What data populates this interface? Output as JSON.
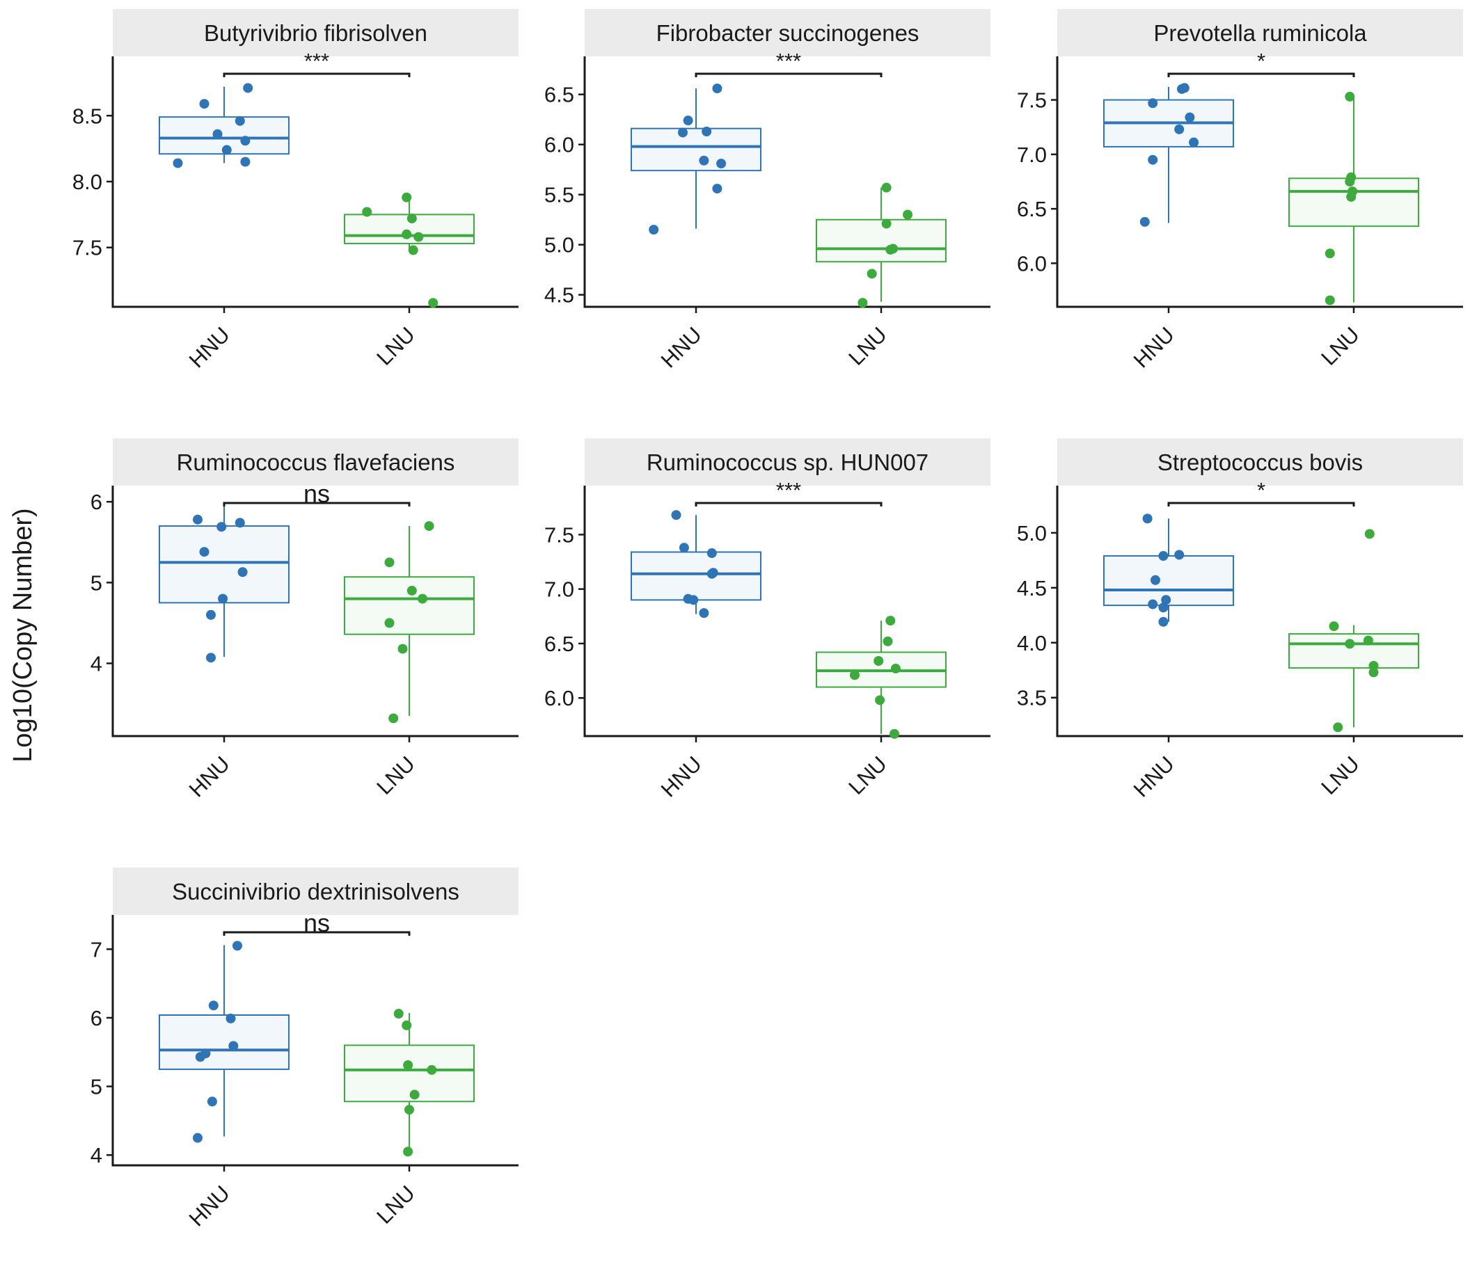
{
  "figure": {
    "ylabel": "Log10(Copy Number)",
    "colors": {
      "HNU": "#2F74B5",
      "LNU": "#3DAA3D",
      "strip_bg": "#EBEBEB",
      "axis": "#1a1a1a"
    }
  },
  "chart_data": [
    {
      "type": "boxplot",
      "title": "Butyrivibrio fibrisolven",
      "categories": [
        "HNU",
        "LNU"
      ],
      "ylim": [
        7.05,
        8.95
      ],
      "yticks": [
        7.5,
        8.0,
        8.5
      ],
      "ytick_labels": [
        "7.5",
        "8.0",
        "8.5"
      ],
      "significance": "***",
      "boxes": [
        {
          "group": "HNU",
          "q1": 8.21,
          "median": 8.33,
          "q3": 8.49,
          "whisker_low": 8.14,
          "whisker_high": 8.72
        },
        {
          "group": "LNU",
          "q1": 7.53,
          "median": 7.59,
          "q3": 7.75,
          "whisker_low": 7.47,
          "whisker_high": 7.88
        }
      ],
      "points": {
        "HNU": [
          [
            -0.35,
            8.14
          ],
          [
            -0.15,
            8.59
          ],
          [
            -0.05,
            8.36
          ],
          [
            0.02,
            8.24
          ],
          [
            0.12,
            8.46
          ],
          [
            0.16,
            8.31
          ],
          [
            0.16,
            8.15
          ],
          [
            0.18,
            8.71
          ]
        ],
        "LNU": [
          [
            -0.32,
            7.77
          ],
          [
            -0.02,
            7.88
          ],
          [
            0.02,
            7.72
          ],
          [
            -0.02,
            7.6
          ],
          [
            0.07,
            7.58
          ],
          [
            0.03,
            7.48
          ],
          [
            0.18,
            7.08
          ]
        ]
      }
    },
    {
      "type": "boxplot",
      "title": "Fibrobacter succinogenes",
      "categories": [
        "HNU",
        "LNU"
      ],
      "ylim": [
        4.38,
        6.88
      ],
      "yticks": [
        4.5,
        5.0,
        5.5,
        6.0,
        6.5
      ],
      "ytick_labels": [
        "4.5",
        "5.0",
        "5.5",
        "6.0",
        "6.5"
      ],
      "significance": "***",
      "boxes": [
        {
          "group": "HNU",
          "q1": 5.74,
          "median": 5.98,
          "q3": 6.16,
          "whisker_low": 5.16,
          "whisker_high": 6.56
        },
        {
          "group": "LNU",
          "q1": 4.83,
          "median": 4.96,
          "q3": 5.25,
          "whisker_low": 4.43,
          "whisker_high": 5.57
        }
      ],
      "points": {
        "HNU": [
          [
            -0.32,
            5.15
          ],
          [
            -0.1,
            6.12
          ],
          [
            -0.06,
            6.24
          ],
          [
            0.06,
            5.84
          ],
          [
            0.08,
            6.13
          ],
          [
            0.16,
            5.56
          ],
          [
            0.19,
            5.81
          ],
          [
            0.16,
            6.56
          ]
        ],
        "LNU": [
          [
            -0.14,
            4.42
          ],
          [
            -0.07,
            4.71
          ],
          [
            0.04,
            5.57
          ],
          [
            0.04,
            5.21
          ],
          [
            0.07,
            4.95
          ],
          [
            0.09,
            4.96
          ],
          [
            0.2,
            5.3
          ]
        ]
      }
    },
    {
      "type": "boxplot",
      "title": "Prevotella ruminicola",
      "categories": [
        "HNU",
        "LNU"
      ],
      "ylim": [
        5.6,
        7.9
      ],
      "yticks": [
        6.0,
        6.5,
        7.0,
        7.5
      ],
      "ytick_labels": [
        "6.0",
        "6.5",
        "7.0",
        "7.5"
      ],
      "significance": "*",
      "boxes": [
        {
          "group": "HNU",
          "q1": 7.07,
          "median": 7.29,
          "q3": 7.5,
          "whisker_low": 6.37,
          "whisker_high": 7.62
        },
        {
          "group": "LNU",
          "q1": 6.34,
          "median": 6.66,
          "q3": 6.78,
          "whisker_low": 5.64,
          "whisker_high": 7.53
        }
      ],
      "points": {
        "HNU": [
          [
            -0.18,
            6.38
          ],
          [
            -0.12,
            6.95
          ],
          [
            -0.12,
            7.47
          ],
          [
            0.08,
            7.23
          ],
          [
            0.1,
            7.6
          ],
          [
            0.12,
            7.61
          ],
          [
            0.16,
            7.34
          ],
          [
            0.19,
            7.11
          ]
        ],
        "LNU": [
          [
            -0.18,
            5.66
          ],
          [
            -0.18,
            6.09
          ],
          [
            -0.02,
            6.79
          ],
          [
            -0.01,
            6.66
          ],
          [
            -0.02,
            6.61
          ],
          [
            -0.03,
            6.75
          ],
          [
            -0.03,
            7.53
          ]
        ]
      }
    },
    {
      "type": "boxplot",
      "title": "Ruminococcus flavefaciens",
      "categories": [
        "HNU",
        "LNU"
      ],
      "ylim": [
        3.1,
        6.2
      ],
      "yticks": [
        4,
        5,
        6
      ],
      "ytick_labels": [
        "4",
        "5",
        "6"
      ],
      "significance": "ns",
      "boxes": [
        {
          "group": "HNU",
          "q1": 4.75,
          "median": 5.25,
          "q3": 5.7,
          "whisker_low": 4.08,
          "whisker_high": 5.95
        },
        {
          "group": "LNU",
          "q1": 4.36,
          "median": 4.8,
          "q3": 5.07,
          "whisker_low": 3.35,
          "whisker_high": 5.7
        }
      ],
      "points": {
        "HNU": [
          [
            -0.2,
            5.78
          ],
          [
            -0.15,
            5.38
          ],
          [
            -0.1,
            4.6
          ],
          [
            -0.1,
            4.07
          ],
          [
            -0.01,
            4.8
          ],
          [
            -0.02,
            5.69
          ],
          [
            0.12,
            5.74
          ],
          [
            0.14,
            5.13
          ]
        ],
        "LNU": [
          [
            -0.15,
            5.25
          ],
          [
            -0.15,
            4.5
          ],
          [
            -0.05,
            4.18
          ],
          [
            -0.12,
            3.32
          ],
          [
            0.02,
            4.9
          ],
          [
            0.1,
            4.8
          ],
          [
            0.15,
            5.7
          ]
        ]
      }
    },
    {
      "type": "boxplot",
      "title": "Ruminococcus sp. HUN007",
      "categories": [
        "HNU",
        "LNU"
      ],
      "ylim": [
        5.65,
        7.95
      ],
      "yticks": [
        6.0,
        6.5,
        7.0,
        7.5
      ],
      "ytick_labels": [
        "6.0",
        "6.5",
        "7.0",
        "7.5"
      ],
      "significance": "***",
      "boxes": [
        {
          "group": "HNU",
          "q1": 6.9,
          "median": 7.14,
          "q3": 7.34,
          "whisker_low": 6.77,
          "whisker_high": 7.68
        },
        {
          "group": "LNU",
          "q1": 6.1,
          "median": 6.25,
          "q3": 6.42,
          "whisker_low": 5.67,
          "whisker_high": 6.71
        }
      ],
      "points": {
        "HNU": [
          [
            -0.15,
            7.68
          ],
          [
            -0.09,
            7.38
          ],
          [
            -0.06,
            6.91
          ],
          [
            -0.02,
            6.9
          ],
          [
            0.06,
            6.78
          ],
          [
            0.12,
            7.33
          ],
          [
            0.12,
            7.14
          ],
          [
            0.13,
            7.15
          ]
        ],
        "LNU": [
          [
            -0.2,
            6.21
          ],
          [
            -0.01,
            5.98
          ],
          [
            -0.02,
            6.34
          ],
          [
            0.05,
            6.52
          ],
          [
            0.07,
            6.71
          ],
          [
            0.11,
            6.27
          ],
          [
            0.1,
            5.67
          ]
        ]
      }
    },
    {
      "type": "boxplot",
      "title": "Streptococcus bovis",
      "categories": [
        "HNU",
        "LNU"
      ],
      "ylim": [
        3.15,
        5.43
      ],
      "yticks": [
        3.5,
        4.0,
        4.5,
        5.0
      ],
      "ytick_labels": [
        "3.5",
        "4.0",
        "4.5",
        "5.0"
      ],
      "significance": "*",
      "boxes": [
        {
          "group": "HNU",
          "q1": 4.34,
          "median": 4.48,
          "q3": 4.79,
          "whisker_low": 4.19,
          "whisker_high": 5.13
        },
        {
          "group": "LNU",
          "q1": 3.77,
          "median": 3.99,
          "q3": 4.08,
          "whisker_low": 3.23,
          "whisker_high": 4.16
        }
      ],
      "points": {
        "HNU": [
          [
            -0.16,
            5.13
          ],
          [
            -0.1,
            4.57
          ],
          [
            -0.12,
            4.35
          ],
          [
            -0.04,
            4.19
          ],
          [
            -0.04,
            4.32
          ],
          [
            -0.04,
            4.79
          ],
          [
            -0.02,
            4.39
          ],
          [
            0.08,
            4.8
          ]
        ],
        "LNU": [
          [
            -0.15,
            4.15
          ],
          [
            -0.12,
            3.23
          ],
          [
            -0.03,
            3.99
          ],
          [
            0.11,
            4.02
          ],
          [
            0.15,
            3.79
          ],
          [
            0.15,
            3.73
          ],
          [
            0.12,
            4.99
          ]
        ]
      }
    },
    {
      "type": "boxplot",
      "title": "Succinivibrio dextrinisolvens",
      "categories": [
        "HNU",
        "LNU"
      ],
      "ylim": [
        3.85,
        7.5
      ],
      "yticks": [
        4,
        5,
        6,
        7
      ],
      "ytick_labels": [
        "4",
        "5",
        "6",
        "7"
      ],
      "significance": "ns",
      "boxes": [
        {
          "group": "HNU",
          "q1": 5.25,
          "median": 5.53,
          "q3": 6.04,
          "whisker_low": 4.27,
          "whisker_high": 7.06
        },
        {
          "group": "LNU",
          "q1": 4.78,
          "median": 5.24,
          "q3": 5.6,
          "whisker_low": 4.05,
          "whisker_high": 6.07
        }
      ],
      "points": {
        "HNU": [
          [
            -0.2,
            4.25
          ],
          [
            -0.18,
            5.43
          ],
          [
            -0.14,
            5.48
          ],
          [
            -0.08,
            6.18
          ],
          [
            -0.09,
            4.78
          ],
          [
            0.05,
            5.99
          ],
          [
            0.07,
            5.59
          ],
          [
            0.1,
            7.05
          ]
        ],
        "LNU": [
          [
            -0.08,
            6.06
          ],
          [
            -0.02,
            5.89
          ],
          [
            -0.01,
            5.31
          ],
          [
            -0.01,
            4.05
          ],
          [
            0.0,
            4.66
          ],
          [
            0.04,
            4.88
          ],
          [
            0.17,
            5.24
          ]
        ]
      }
    }
  ]
}
